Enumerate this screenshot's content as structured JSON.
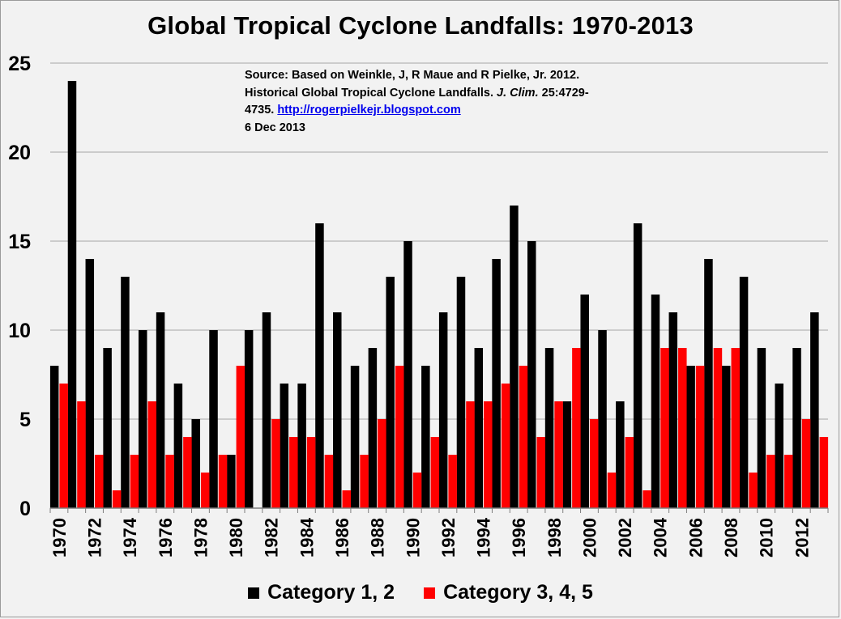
{
  "chart_data": {
    "type": "bar",
    "title": "Global Tropical Cyclone Landfalls: 1970-2013",
    "xlabel": "",
    "ylabel": "",
    "ylim": [
      0,
      25
    ],
    "yticks": [
      0,
      5,
      10,
      15,
      20,
      25
    ],
    "grid": true,
    "legend_position": "bottom",
    "categories": [
      "1970",
      "1971",
      "1972",
      "1973",
      "1974",
      "1975",
      "1976",
      "1977",
      "1978",
      "1979",
      "1980",
      "1981",
      "1982",
      "1983",
      "1984",
      "1985",
      "1986",
      "1987",
      "1988",
      "1989",
      "1990",
      "1991",
      "1992",
      "1993",
      "1994",
      "1995",
      "1996",
      "1997",
      "1998",
      "1999",
      "2000",
      "2001",
      "2002",
      "2003",
      "2004",
      "2005",
      "2006",
      "2007",
      "2008",
      "2009",
      "2010",
      "2011",
      "2012",
      "2013"
    ],
    "xtick_labels": [
      "1970",
      "1972",
      "1974",
      "1976",
      "1978",
      "1980",
      "1982",
      "1984",
      "1986",
      "1988",
      "1990",
      "1992",
      "1994",
      "1996",
      "1998",
      "2000",
      "2002",
      "2004",
      "2006",
      "2008",
      "2010",
      "2012"
    ],
    "series": [
      {
        "name": "Category 1, 2",
        "color": "#000000",
        "values": [
          8,
          24,
          14,
          9,
          13,
          10,
          11,
          7,
          5,
          10,
          3,
          10,
          11,
          7,
          7,
          16,
          11,
          8,
          9,
          13,
          15,
          8,
          11,
          13,
          9,
          14,
          17,
          15,
          9,
          6,
          12,
          10,
          6,
          16,
          12,
          11,
          8,
          14,
          8,
          13,
          9,
          7,
          9,
          11
        ]
      },
      {
        "name": "Category 3, 4, 5",
        "color": "#ff0000",
        "values": [
          7,
          6,
          3,
          1,
          3,
          6,
          3,
          4,
          2,
          3,
          8,
          0,
          5,
          4,
          4,
          3,
          1,
          3,
          5,
          8,
          2,
          4,
          3,
          6,
          6,
          7,
          8,
          4,
          6,
          9,
          5,
          2,
          4,
          1,
          9,
          9,
          8,
          9,
          9,
          2,
          3,
          3,
          5,
          4
        ]
      }
    ]
  },
  "source_note": {
    "line1": "Source: Based on Weinkle, J, R Maue and R Pielke, Jr. 2012.",
    "line2": "Historical Global Tropical Cyclone Landfalls.",
    "line2_italic": "J. Clim.",
    "line2_end": "25:4729-",
    "line3": "4735.",
    "link": "http://rogerpielkejr.blogspot.com",
    "line4": "6 Dec 2013"
  },
  "legend": [
    {
      "label": "Category 1, 2",
      "color": "#000000"
    },
    {
      "label": "Category 3, 4, 5",
      "color": "#ff0000"
    }
  ]
}
